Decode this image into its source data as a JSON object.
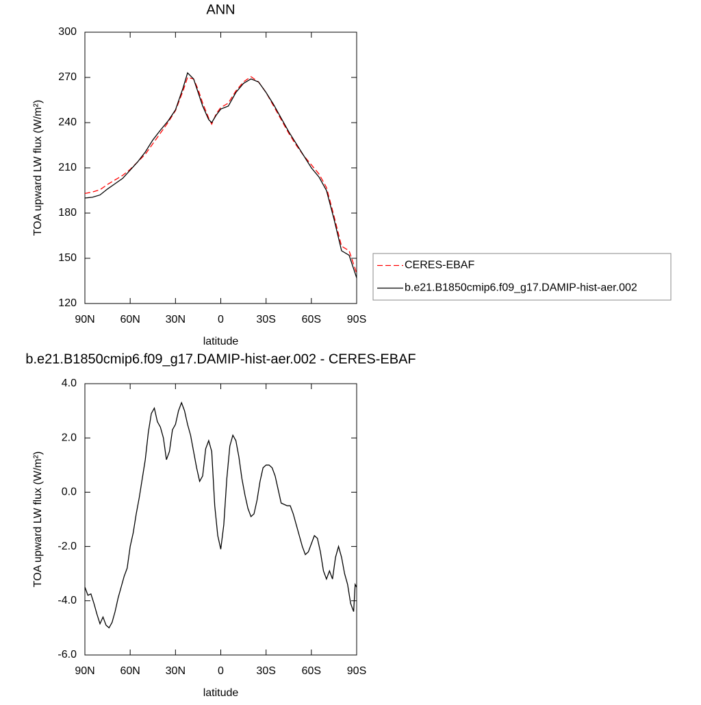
{
  "chart_data": [
    {
      "type": "line",
      "title": "ANN",
      "x_label": "latitude",
      "y_label": "TOA upward LW flux (W/m²)",
      "x": [
        90,
        85,
        80,
        75,
        70,
        65,
        60,
        55,
        50,
        45,
        40,
        35,
        30,
        25,
        22,
        18,
        15,
        12,
        8,
        6,
        3,
        0,
        -5,
        -10,
        -15,
        -20,
        -25,
        -30,
        -35,
        -40,
        -45,
        -50,
        -55,
        -60,
        -65,
        -70,
        -75,
        -80,
        -85,
        -90
      ],
      "series": [
        {
          "name": "CERES-EBAF",
          "color": "#ff0000",
          "dashed": true,
          "values": [
            193,
            194,
            195.5,
            199,
            202,
            205,
            209,
            214,
            219,
            226,
            233,
            240,
            248,
            261,
            270,
            269,
            262,
            253,
            243,
            239,
            246,
            250,
            253,
            261,
            267,
            270.5,
            267,
            260,
            251,
            242,
            233,
            225,
            218,
            212,
            206,
            197,
            178,
            158,
            155,
            140
          ]
        },
        {
          "name": "b.e21.B1850cmip6.f09_g17.DAMIP-hist-aer.002",
          "color": "#000000",
          "dashed": false,
          "values": [
            190,
            190.5,
            192,
            196,
            199.5,
            203,
            208.5,
            214,
            220.5,
            228.5,
            235,
            241,
            248.5,
            263,
            273,
            269,
            260,
            251,
            242,
            240,
            245,
            249,
            251,
            260,
            266,
            269,
            267,
            260,
            252,
            243,
            234,
            226,
            218,
            210,
            204,
            195,
            176,
            155,
            152,
            137
          ]
        }
      ],
      "xlim": [
        90,
        -90
      ],
      "xticks": [
        {
          "value": 90,
          "label": "90N"
        },
        {
          "value": 60,
          "label": "60N"
        },
        {
          "value": 30,
          "label": "30N"
        },
        0,
        {
          "value": -30,
          "label": "30S"
        },
        {
          "value": -60,
          "label": "60S"
        },
        {
          "value": -90,
          "label": "90S"
        }
      ],
      "ylim": [
        120,
        300
      ],
      "yticks": [
        120,
        150,
        180,
        210,
        240,
        270,
        300
      ],
      "legend": "right"
    },
    {
      "type": "line",
      "title": "b.e21.B1850cmip6.f09_g17.DAMIP-hist-aer.002 - CERES-EBAF",
      "x_label": "latitude",
      "y_label": "TOA upward LW flux (W/m²)",
      "x": [
        90,
        88,
        86,
        84,
        82,
        80,
        78,
        76,
        74,
        72,
        70,
        68,
        66,
        64,
        62,
        60,
        58,
        56,
        54,
        52,
        50,
        48,
        46,
        44,
        42,
        40,
        38,
        36,
        34,
        32,
        30,
        28,
        26,
        24,
        22,
        20,
        18,
        16,
        14,
        12,
        10,
        8,
        6,
        4,
        2,
        0,
        -2,
        -4,
        -6,
        -8,
        -10,
        -12,
        -14,
        -16,
        -18,
        -20,
        -22,
        -24,
        -26,
        -28,
        -30,
        -32,
        -34,
        -36,
        -38,
        -40,
        -42,
        -44,
        -46,
        -48,
        -50,
        -52,
        -54,
        -56,
        -58,
        -60,
        -62,
        -64,
        -66,
        -68,
        -70,
        -72,
        -74,
        -76,
        -78,
        -80,
        -82,
        -84,
        -86,
        -88,
        -89,
        -90
      ],
      "values": [
        -3.5,
        -3.8,
        -3.75,
        -4.1,
        -4.5,
        -4.85,
        -4.6,
        -4.9,
        -5.0,
        -4.8,
        -4.4,
        -3.9,
        -3.5,
        -3.1,
        -2.8,
        -2.0,
        -1.5,
        -0.8,
        -0.2,
        0.5,
        1.2,
        2.2,
        2.9,
        3.1,
        2.6,
        2.4,
        2.0,
        1.2,
        1.5,
        2.3,
        2.5,
        3.0,
        3.3,
        3.0,
        2.5,
        2.1,
        1.5,
        0.9,
        0.4,
        0.6,
        1.6,
        1.9,
        1.5,
        -0.5,
        -1.6,
        -2.1,
        -1.2,
        0.5,
        1.7,
        2.1,
        1.9,
        1.3,
        0.5,
        -0.1,
        -0.6,
        -0.9,
        -0.8,
        -0.3,
        0.4,
        0.9,
        1.0,
        1.0,
        0.9,
        0.6,
        0.1,
        -0.4,
        -0.45,
        -0.5,
        -0.5,
        -0.8,
        -1.2,
        -1.6,
        -2.0,
        -2.3,
        -2.2,
        -1.9,
        -1.6,
        -1.7,
        -2.2,
        -2.9,
        -3.2,
        -2.9,
        -3.2,
        -2.4,
        -2.0,
        -2.4,
        -3.0,
        -3.4,
        -4.1,
        -4.4,
        -3.4,
        -3.5
      ],
      "color": "#000000",
      "xlim": [
        90,
        -90
      ],
      "xticks": [
        {
          "value": 90,
          "label": "90N"
        },
        {
          "value": 60,
          "label": "60N"
        },
        {
          "value": 30,
          "label": "30N"
        },
        0,
        {
          "value": -30,
          "label": "30S"
        },
        {
          "value": -60,
          "label": "60S"
        },
        {
          "value": -90,
          "label": "90S"
        }
      ],
      "ylim": [
        -6,
        4
      ],
      "yticks": [
        {
          "value": -6,
          "label": "-6.0"
        },
        {
          "value": -4,
          "label": "-4.0"
        },
        {
          "value": -2,
          "label": "-2.0"
        },
        {
          "value": 0,
          "label": "0.0"
        },
        {
          "value": 2,
          "label": "2.0"
        },
        {
          "value": 4,
          "label": "4.0"
        }
      ]
    }
  ]
}
